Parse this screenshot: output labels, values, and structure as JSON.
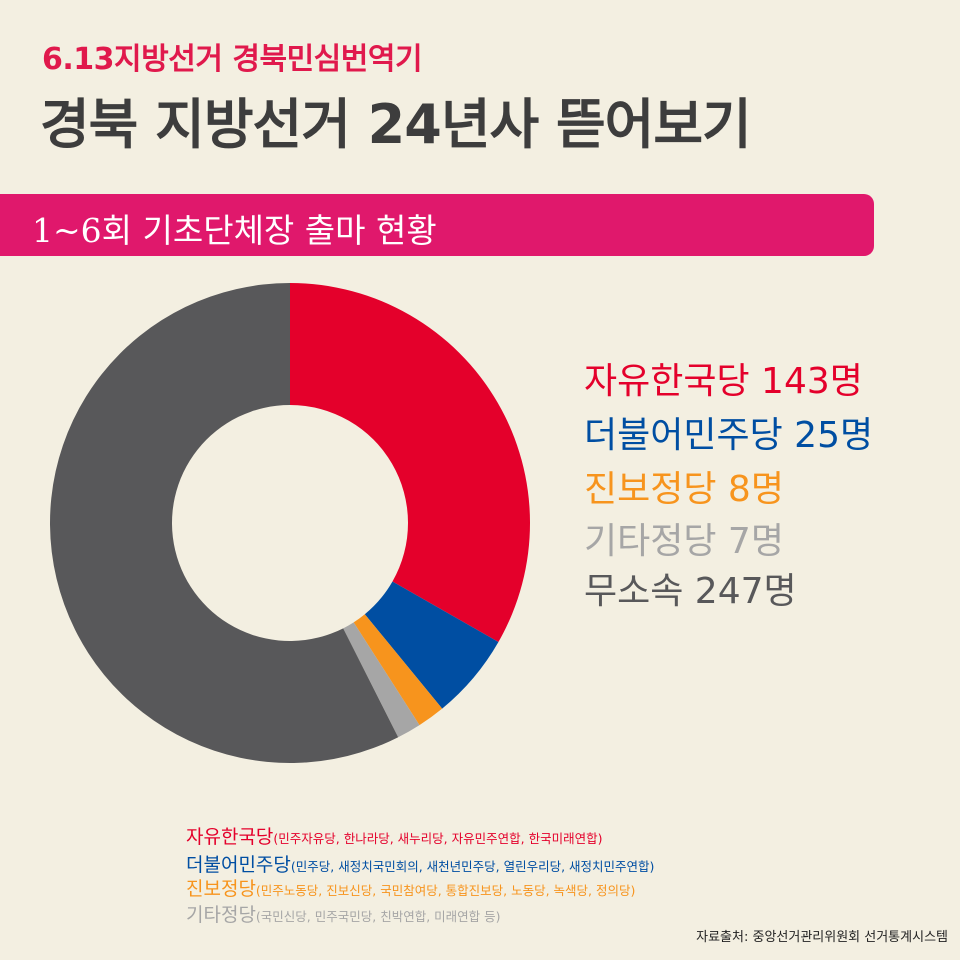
{
  "header": {
    "subtitle": "6.13지방선거 경북민심번역기",
    "title": "경북 지방선거 24년사 뜯어보기"
  },
  "section": {
    "title": "1~6회 기초단체장 출마 현황"
  },
  "chart_data": {
    "type": "pie",
    "donut": true,
    "start": "top",
    "direction": "clockwise",
    "slices": [
      {
        "label": "자유한국당",
        "value": 143,
        "unit": "명",
        "color": "#e4002b"
      },
      {
        "label": "더불어민주당",
        "value": 25,
        "unit": "명",
        "color": "#004ea2"
      },
      {
        "label": "진보정당",
        "value": 8,
        "unit": "명",
        "color": "#f7941d"
      },
      {
        "label": "기타정당",
        "value": 7,
        "unit": "명",
        "color": "#a6a6a6"
      },
      {
        "label": "무소속",
        "value": 247,
        "unit": "명",
        "color": "#58585a"
      }
    ]
  },
  "legend": [
    {
      "text": "자유한국당 143명",
      "color": "#e4002b"
    },
    {
      "text": "더불어민주당 25명",
      "color": "#004ea2"
    },
    {
      "text": "진보정당 8명",
      "color": "#f7941d"
    },
    {
      "text": "기타정당 7명",
      "color": "#a6a6a6"
    },
    {
      "text": "무소속 247명",
      "color": "#58585a"
    }
  ],
  "notes": [
    {
      "party": "자유한국당",
      "detail": "(민주자유당, 한나라당, 새누리당, 자유민주연합, 한국미래연합)",
      "color": "#e4002b"
    },
    {
      "party": "더불어민주당",
      "detail": "(민주당, 새정치국민회의, 새천년민주당, 열린우리당, 새정치민주연합)",
      "color": "#004ea2"
    },
    {
      "party": "진보정당",
      "detail": "(민주노동당, 진보신당, 국민참여당, 통합진보당, 노동당, 녹색당, 정의당)",
      "color": "#f7941d"
    },
    {
      "party": "기타정당",
      "detail": "(국민신당, 민주국민당, 친박연합, 미래연합 등)",
      "color": "#a6a6a6"
    }
  ],
  "source": "자료출처: 중앙선거관리위원회 선거통계시스템"
}
